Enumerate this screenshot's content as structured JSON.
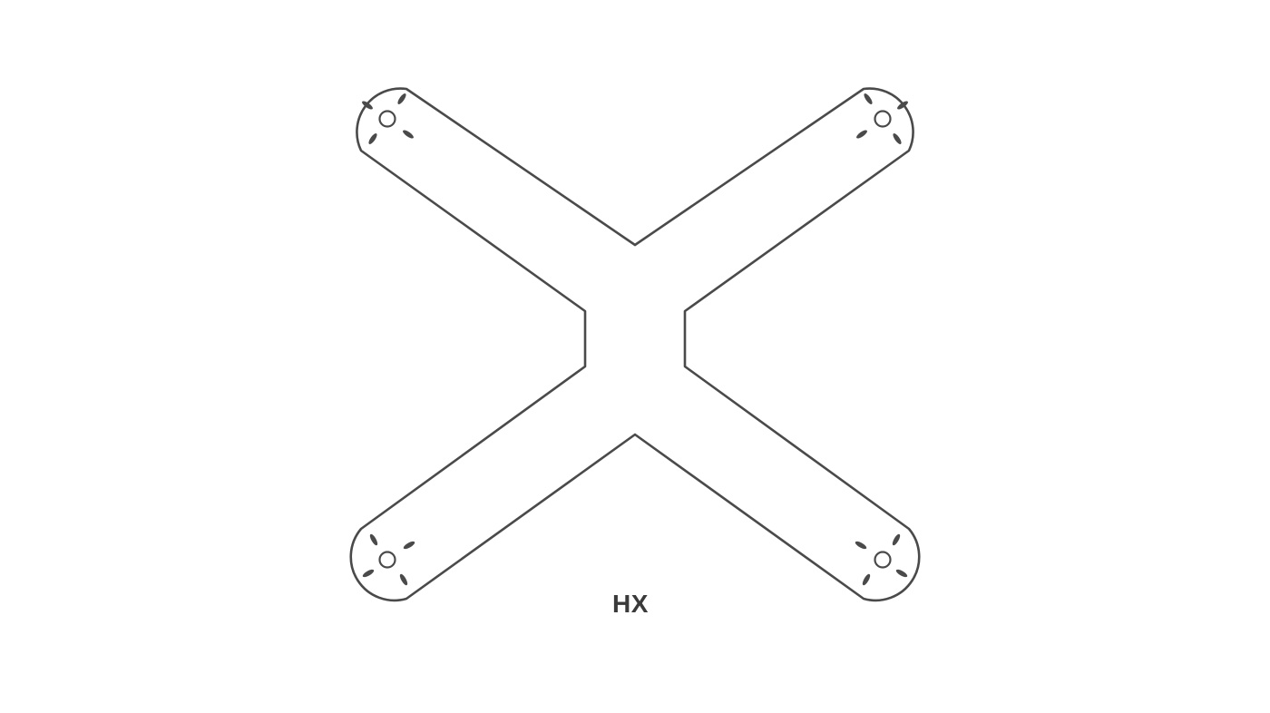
{
  "diagram": {
    "label": "HX",
    "shape": "x-frame-outline",
    "arms": [
      {
        "name": "top-left",
        "motor_mount": "four-slot-pattern"
      },
      {
        "name": "top-right",
        "motor_mount": "four-slot-pattern"
      },
      {
        "name": "bottom-left",
        "motor_mount": "four-slot-pattern"
      },
      {
        "name": "bottom-right",
        "motor_mount": "four-slot-pattern"
      }
    ],
    "colors": {
      "stroke": "#4a4a4a",
      "label": "#3a3a3a",
      "background": "#ffffff"
    }
  }
}
